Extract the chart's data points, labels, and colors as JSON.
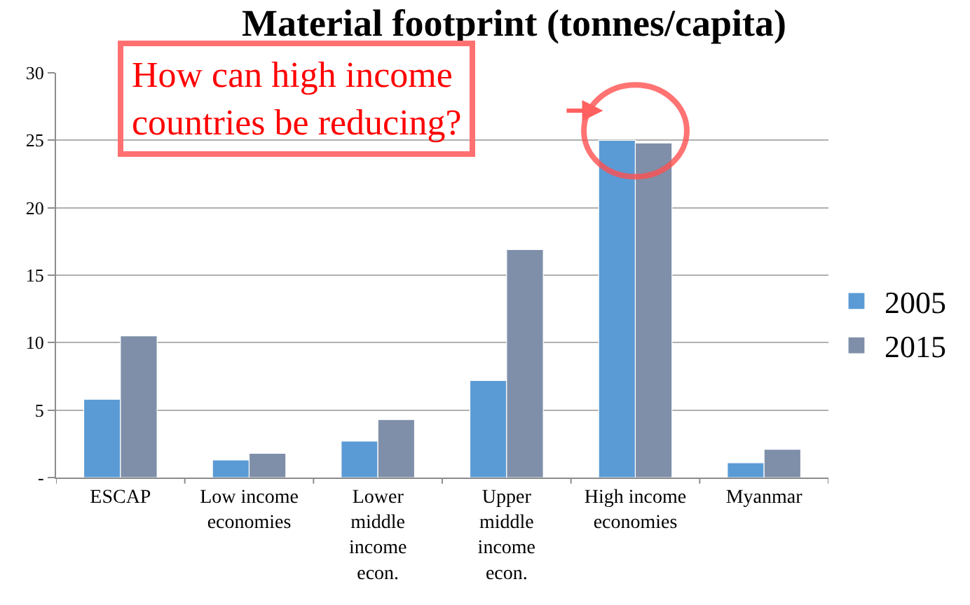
{
  "chart_data": {
    "type": "bar",
    "title": "Material footprint (tonnes/capita)",
    "categories": [
      "ESCAP",
      "Low income economies",
      "Lower middle income econ.",
      "Upper middle income econ.",
      "High income economies",
      "Myanmar"
    ],
    "series": [
      {
        "name": "2005",
        "color": "#5b9bd5",
        "values": [
          5.8,
          1.3,
          2.7,
          7.2,
          25.0,
          1.1
        ]
      },
      {
        "name": "2015",
        "color": "#7f8fa9",
        "values": [
          10.5,
          1.8,
          4.3,
          16.9,
          24.8,
          2.1
        ]
      }
    ],
    "ylim": [
      0,
      30
    ],
    "yticks": [
      {
        "value": 0,
        "label": "-"
      },
      5,
      10,
      15,
      20,
      25,
      30
    ],
    "grid": "y",
    "legend": "right",
    "annotations": [
      "How can high income countries be reducing?"
    ]
  }
}
